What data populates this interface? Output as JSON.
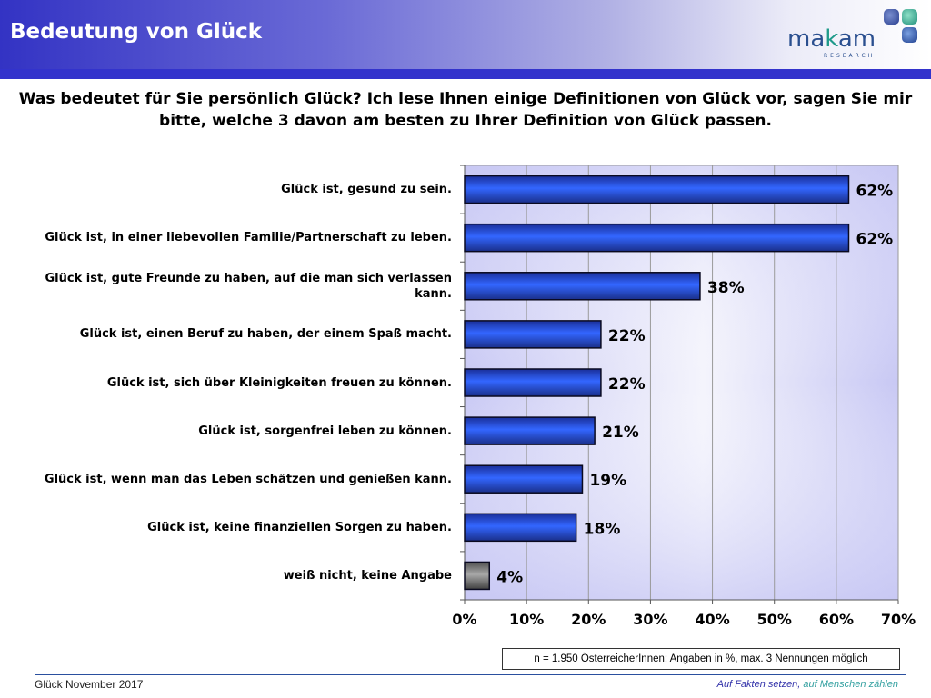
{
  "header": {
    "title": "Bedeutung von Glück",
    "logo_text_1": "ma",
    "logo_text_2": "k",
    "logo_text_3": "am",
    "logo_sub": "RESEARCH"
  },
  "question": "Was bedeutet für Sie persönlich Glück? Ich lese Ihnen einige Definitionen von Glück vor, sagen Sie mir bitte, welche 3 davon am besten zu Ihrer Definition von Glück passen.",
  "note": "n = 1.950 ÖsterreicherInnen; Angaben in %, max. 3 Nennungen möglich",
  "footer": {
    "left": "Glück November 2017",
    "right_1": "Auf Fakten setzen,",
    "right_2": " auf Menschen zählen"
  },
  "colors": {
    "bar": "#2f5fe6",
    "bar_dark": "#1a2f8a",
    "bar_na": "#808080",
    "header": "#3333cc"
  },
  "chart_data": {
    "type": "bar",
    "orientation": "horizontal",
    "title": "",
    "xlabel": "",
    "ylabel": "",
    "xlim": [
      0,
      70
    ],
    "x_ticks": [
      "0%",
      "10%",
      "20%",
      "30%",
      "40%",
      "50%",
      "60%",
      "70%"
    ],
    "grid": true,
    "categories": [
      "Glück ist, gesund zu sein.",
      "Glück ist, in einer liebevollen Familie/Partnerschaft zu leben.",
      "Glück ist, gute Freunde zu haben, auf die man sich verlassen kann.",
      "Glück ist, einen Beruf zu haben, der einem Spaß macht.",
      "Glück ist, sich über Kleinigkeiten freuen zu können.",
      "Glück ist, sorgenfrei leben zu können.",
      "Glück ist, wenn man das Leben schätzen und genießen kann.",
      "Glück ist, keine finanziellen Sorgen zu haben.",
      "weiß nicht, keine Angabe"
    ],
    "values": [
      62,
      62,
      38,
      22,
      22,
      21,
      19,
      18,
      4
    ],
    "data_labels": [
      "62%",
      "62%",
      "38%",
      "22%",
      "22%",
      "21%",
      "19%",
      "18%",
      "4%"
    ]
  }
}
